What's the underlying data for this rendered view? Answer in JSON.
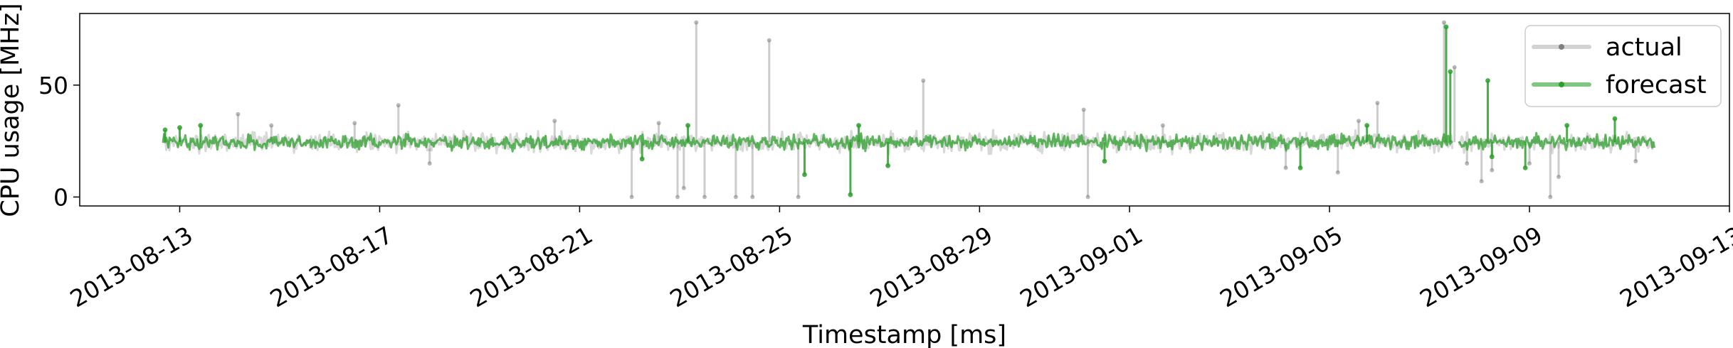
{
  "chart_data": {
    "type": "line",
    "xlabel": "Timestamp [ms]",
    "ylabel": "CPU usage [MHz]",
    "xlim": [
      "2013-08-11",
      "2013-09-13"
    ],
    "ylim": [
      -4,
      82
    ],
    "xticks": [
      "2013-08-13",
      "2013-08-17",
      "2013-08-21",
      "2013-08-25",
      "2013-08-29",
      "2013-09-01",
      "2013-09-05",
      "2013-09-09",
      "2013-09-13"
    ],
    "yticks": [
      0,
      50
    ],
    "legend_position": "top-right",
    "grid": false,
    "series": [
      {
        "name": "actual",
        "color": "#7f7f7f",
        "band": [
          20,
          29
        ],
        "range": [
          "2013-08-12T16:00",
          "2013-09-11T12:00"
        ],
        "gap": [
          "2013-09-07T11:00",
          "2013-09-07T14:00"
        ],
        "points": [
          [
            "2013-08-14T04:00",
            37
          ],
          [
            "2013-08-14T20:00",
            32
          ],
          [
            "2013-08-16T12:00",
            33
          ],
          [
            "2013-08-17T09:00",
            41
          ],
          [
            "2013-08-18T00:00",
            15
          ],
          [
            "2013-08-20T12:00",
            34
          ],
          [
            "2013-08-22T01:00",
            0
          ],
          [
            "2013-08-22T14:00",
            33
          ],
          [
            "2013-08-22T23:00",
            0
          ],
          [
            "2013-08-23T02:00",
            4
          ],
          [
            "2013-08-23T08:00",
            78
          ],
          [
            "2013-08-23T12:00",
            0
          ],
          [
            "2013-08-24T03:00",
            0
          ],
          [
            "2013-08-24T11:00",
            0
          ],
          [
            "2013-08-24T19:00",
            70
          ],
          [
            "2013-08-25T09:00",
            0
          ],
          [
            "2013-08-27T21:00",
            52
          ],
          [
            "2013-08-31T02:00",
            39
          ],
          [
            "2013-08-31T04:00",
            0
          ],
          [
            "2013-09-01T16:00",
            32
          ],
          [
            "2013-09-04T03:00",
            13
          ],
          [
            "2013-09-05T04:00",
            11
          ],
          [
            "2013-09-05T14:00",
            34
          ],
          [
            "2013-09-05T23:00",
            42
          ],
          [
            "2013-09-07T07:00",
            78
          ],
          [
            "2013-09-07T12:00",
            58
          ],
          [
            "2013-09-07T18:00",
            15
          ],
          [
            "2013-09-08T01:00",
            7
          ],
          [
            "2013-09-08T06:00",
            12
          ],
          [
            "2013-09-09T00:00",
            15
          ],
          [
            "2013-09-09T10:00",
            0
          ],
          [
            "2013-09-09T14:00",
            9
          ],
          [
            "2013-09-11T03:00",
            16
          ]
        ]
      },
      {
        "name": "forecast",
        "color": "#2ca02c",
        "band": [
          21,
          28
        ],
        "range": [
          "2013-08-12T16:00",
          "2013-09-11T12:00"
        ],
        "gap": [
          "2013-09-07T11:00",
          "2013-09-07T14:00"
        ],
        "points": [
          [
            "2013-08-12T17:00",
            30
          ],
          [
            "2013-08-13T00:00",
            31
          ],
          [
            "2013-08-13T10:00",
            32
          ],
          [
            "2013-08-22T06:00",
            17
          ],
          [
            "2013-08-23T04:00",
            32
          ],
          [
            "2013-08-25T12:00",
            10
          ],
          [
            "2013-08-26T10:00",
            1
          ],
          [
            "2013-08-26T14:00",
            32
          ],
          [
            "2013-08-27T04:00",
            14
          ],
          [
            "2013-08-31T12:00",
            16
          ],
          [
            "2013-09-04T10:00",
            13
          ],
          [
            "2013-09-05T18:00",
            32
          ],
          [
            "2013-09-07T08:00",
            76
          ],
          [
            "2013-09-07T10:00",
            56
          ],
          [
            "2013-09-08T04:00",
            52
          ],
          [
            "2013-09-08T06:00",
            18
          ],
          [
            "2013-09-08T22:00",
            13
          ],
          [
            "2013-09-09T18:00",
            32
          ],
          [
            "2013-09-10T17:00",
            35
          ]
        ]
      }
    ]
  }
}
